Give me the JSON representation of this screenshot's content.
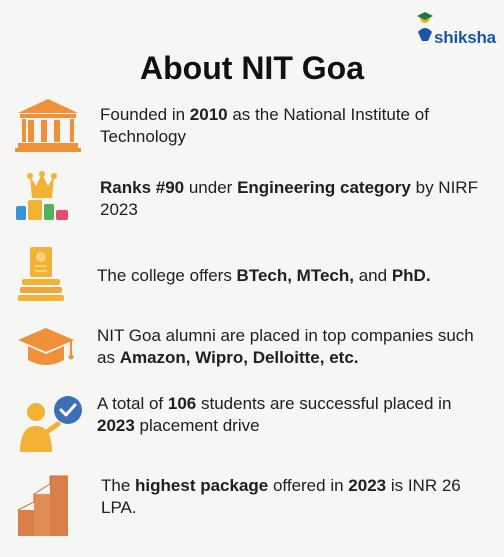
{
  "logo": {
    "brand": "shiksha",
    "icon": "shiksha-logo-icon"
  },
  "title": "About NIT Goa",
  "facts": [
    {
      "icon": "institution-building-icon",
      "parts": [
        "Founded in ",
        "2010",
        " as the National Institute of Technology"
      ]
    },
    {
      "icon": "ranking-crown-icon",
      "parts": [
        "Ranks #90",
        " under ",
        "Engineering category",
        " by NIRF 2023"
      ]
    },
    {
      "icon": "certificate-books-icon",
      "parts": [
        "The college offers ",
        "BTech, MTech,",
        " and ",
        "PhD."
      ]
    },
    {
      "icon": "graduation-cap-icon",
      "parts": [
        "NIT Goa alumni are placed in top companies such as ",
        "Amazon, Wipro, Delloitte, etc."
      ]
    },
    {
      "icon": "placed-student-check-icon",
      "parts": [
        "A total of ",
        "106",
        " students are successful placed in ",
        "2023",
        " placement drive"
      ]
    },
    {
      "icon": "growth-bars-icon",
      "parts": [
        "The ",
        "highest package",
        " offered in ",
        "2023",
        " is INR 26 LPA."
      ]
    }
  ],
  "colors": {
    "accent_orange": "#f0913a",
    "gold": "#f2b233",
    "brand_blue": "#1b56a5",
    "check_blue": "#3c6fb8"
  }
}
